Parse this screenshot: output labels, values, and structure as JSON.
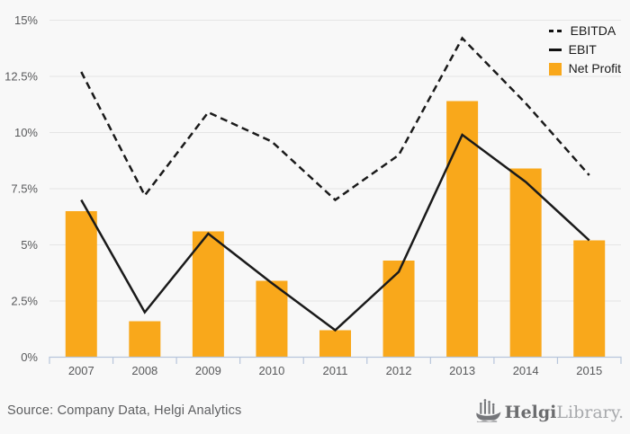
{
  "chart_data": {
    "type": "bar",
    "title": "",
    "units": "percent",
    "categories": [
      "2007",
      "2008",
      "2009",
      "2010",
      "2011",
      "2012",
      "2013",
      "2014",
      "2015"
    ],
    "series": [
      {
        "name": "EBITDA",
        "type": "line",
        "line_style": "dashed",
        "color": "#1a1a1a",
        "values": [
          12.7,
          7.2,
          10.9,
          9.6,
          7.0,
          9.0,
          14.2,
          11.3,
          8.1
        ]
      },
      {
        "name": "EBIT",
        "type": "line",
        "line_style": "solid",
        "color": "#1a1a1a",
        "values": [
          7.0,
          2.0,
          5.5,
          3.3,
          1.2,
          3.8,
          9.9,
          7.8,
          5.2
        ]
      },
      {
        "name": "Net Profit",
        "type": "bar",
        "color": "#f9a81b",
        "values": [
          6.5,
          1.6,
          5.6,
          3.4,
          1.2,
          4.3,
          11.4,
          8.4,
          5.2
        ]
      }
    ],
    "xlabel": "",
    "ylabel": "",
    "ylim": [
      0,
      15
    ],
    "ytick_step": 2.5,
    "ytick_labels": [
      "0%",
      "2.5%",
      "5%",
      "7.5%",
      "10%",
      "12.5%",
      "15%"
    ],
    "grid": true,
    "legend_position": "top-right"
  },
  "colors": {
    "bar_orange": "#f9a81b",
    "line_black": "#1a1a1a",
    "grid_gray": "#e5e5e5",
    "axis_blue_gray": "#b7c5db",
    "tick_label_gray": "#58595b",
    "source_gray": "#5d5e60",
    "logo_dark": "#6b6c6e",
    "logo_light": "#a6a8ab",
    "background": "#f8f8f8"
  },
  "footer": {
    "source": "Source: Company Data, Helgi Analytics",
    "logo_primary": "Helgi",
    "logo_secondary": "Library."
  }
}
